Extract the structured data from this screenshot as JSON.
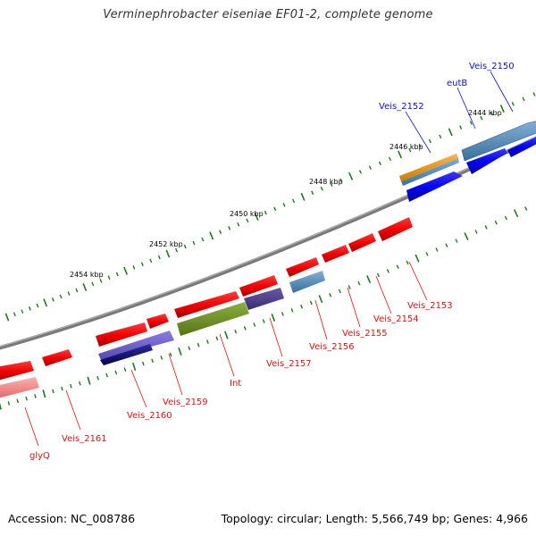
{
  "title": "Verminephrobacter eiseniae EF01-2, complete genome",
  "accession": "Accession: NC_008786",
  "summary": "Topology: circular; Length: 5,566,749 bp; Genes: 4,966",
  "colors": {
    "backbone": "#808080",
    "tick": "#1d7a1d",
    "gene_label_forward": "#1010cc",
    "gene_label_reverse": "#dd1111"
  },
  "scale_labels": [
    "2444 kbp",
    "2446 kbp",
    "2448 kbp",
    "2450 kbp",
    "2452 kbp",
    "2454 kbp"
  ],
  "gene_labels": [
    {
      "text": "Veis_2150",
      "strand": "forward"
    },
    {
      "text": "eutB",
      "strand": "forward"
    },
    {
      "text": "Veis_2152",
      "strand": "forward"
    },
    {
      "text": "Veis_2153",
      "strand": "reverse"
    },
    {
      "text": "Veis_2154",
      "strand": "reverse"
    },
    {
      "text": "Veis_2155",
      "strand": "reverse"
    },
    {
      "text": "Veis_2156",
      "strand": "reverse"
    },
    {
      "text": "Veis_2157",
      "strand": "reverse"
    },
    {
      "text": "Int",
      "strand": "reverse"
    },
    {
      "text": "Veis_2159",
      "strand": "reverse"
    },
    {
      "text": "Veis_2160",
      "strand": "reverse"
    },
    {
      "text": "Veis_2161",
      "strand": "reverse"
    },
    {
      "text": "glyQ",
      "strand": "reverse"
    }
  ]
}
